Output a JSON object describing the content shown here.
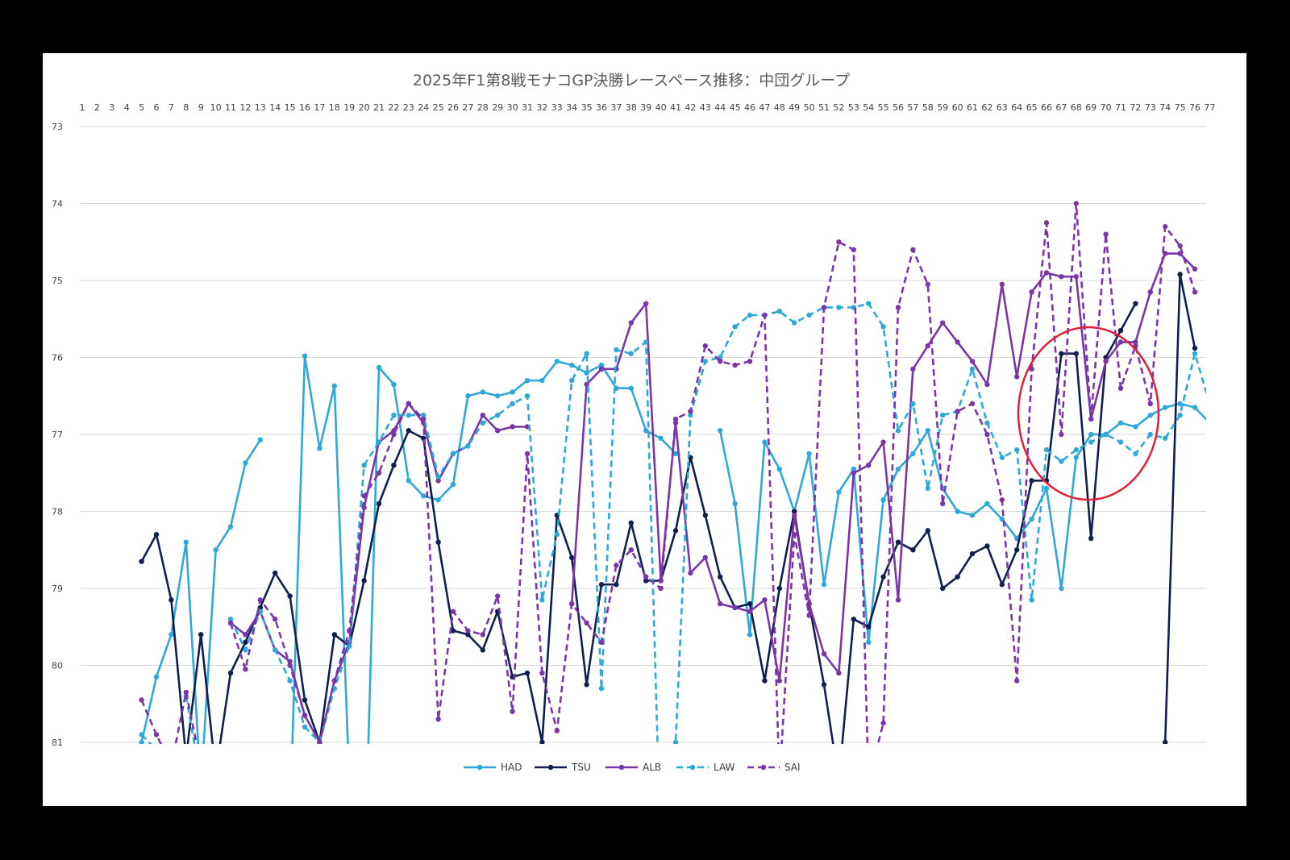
{
  "colors": {
    "background": "#000000",
    "panel": "#ffffff",
    "grid": "#d9d9d9",
    "highlight_circle": "#e0203a"
  },
  "chart_data": {
    "type": "line",
    "title": "2025年F1第8戦モナコGP決勝レースペース推移：中団グループ",
    "x_axis": {
      "position": "top",
      "min": 1,
      "max": 77
    },
    "y_axis": {
      "min": 73,
      "max": 81,
      "reversed": true,
      "ticks": [
        73,
        74,
        75,
        76,
        77,
        78,
        79,
        80,
        81
      ]
    },
    "grid": "horizontal",
    "legend_position": "bottom",
    "x": [
      1,
      2,
      3,
      4,
      5,
      6,
      7,
      8,
      9,
      10,
      11,
      12,
      13,
      14,
      15,
      16,
      17,
      18,
      19,
      20,
      21,
      22,
      23,
      24,
      25,
      26,
      27,
      28,
      29,
      30,
      31,
      32,
      33,
      34,
      35,
      36,
      37,
      38,
      39,
      40,
      41,
      42,
      43,
      44,
      45,
      46,
      47,
      48,
      49,
      50,
      51,
      52,
      53,
      54,
      55,
      56,
      57,
      58,
      59,
      60,
      61,
      62,
      63,
      64,
      65,
      66,
      67,
      68,
      69,
      70,
      71,
      72,
      73,
      74,
      75,
      76,
      77
    ],
    "series": [
      {
        "name": "HAD",
        "color": "#2ea8d8",
        "dash": false,
        "values": [
          null,
          null,
          null,
          null,
          81.0,
          80.15,
          79.6,
          78.4,
          81.6,
          78.5,
          78.2,
          77.37,
          77.07,
          null,
          82.0,
          75.98,
          77.18,
          76.37,
          81.5,
          83.0,
          76.13,
          76.35,
          77.6,
          77.8,
          77.85,
          77.65,
          76.5,
          76.45,
          76.5,
          76.45,
          76.3,
          76.3,
          76.05,
          76.1,
          76.2,
          76.1,
          76.4,
          76.4,
          76.95,
          77.05,
          77.25,
          null,
          null,
          76.95,
          77.9,
          79.6,
          77.1,
          77.45,
          78.0,
          77.25,
          78.95,
          77.75,
          77.45,
          79.7,
          77.85,
          77.45,
          77.25,
          76.95,
          77.7,
          78.0,
          78.05,
          77.9,
          78.1,
          78.35,
          78.1,
          77.7,
          79.0,
          77.3,
          77.0,
          77.0,
          76.85,
          76.9,
          76.75,
          76.65,
          76.6,
          76.65,
          76.85
        ]
      },
      {
        "name": "TSU",
        "color": "#0f1f4f",
        "dash": false,
        "values": [
          null,
          null,
          null,
          null,
          78.65,
          78.3,
          79.15,
          81.2,
          79.6,
          81.4,
          80.1,
          79.7,
          79.25,
          78.8,
          79.1,
          80.45,
          81.0,
          79.6,
          79.75,
          78.9,
          77.9,
          77.4,
          76.95,
          77.05,
          78.4,
          79.55,
          79.6,
          79.8,
          79.3,
          80.15,
          80.1,
          81.0,
          78.05,
          78.6,
          80.25,
          78.95,
          78.95,
          78.15,
          78.9,
          78.9,
          78.25,
          77.3,
          78.05,
          78.85,
          79.25,
          79.2,
          80.2,
          79.0,
          78.0,
          79.2,
          80.25,
          81.5,
          79.4,
          79.5,
          78.85,
          78.4,
          78.5,
          78.25,
          79.0,
          78.85,
          78.55,
          78.45,
          78.95,
          78.5,
          77.6,
          77.6,
          75.95,
          75.95,
          78.35,
          76.0,
          75.65,
          75.3,
          null,
          81.0,
          74.92,
          75.88,
          null
        ]
      },
      {
        "name": "ALB",
        "color": "#7a35a8",
        "dash": false,
        "values": [
          null,
          null,
          null,
          null,
          null,
          null,
          null,
          null,
          null,
          null,
          79.45,
          79.6,
          79.3,
          79.8,
          79.95,
          80.65,
          81.0,
          80.2,
          79.7,
          77.95,
          77.1,
          76.95,
          76.6,
          76.85,
          77.6,
          77.25,
          77.15,
          76.75,
          76.95,
          76.9,
          76.9,
          null,
          null,
          79.2,
          76.35,
          76.15,
          76.15,
          75.55,
          75.3,
          78.9,
          76.85,
          78.8,
          78.6,
          79.2,
          79.25,
          79.3,
          79.15,
          80.2,
          78.05,
          79.2,
          79.85,
          80.1,
          77.5,
          77.4,
          77.1,
          79.15,
          76.15,
          75.85,
          75.55,
          75.8,
          76.05,
          76.35,
          75.05,
          76.25,
          75.15,
          74.9,
          74.95,
          74.95,
          76.8,
          76.05,
          75.8,
          75.8,
          75.15,
          74.65,
          74.65,
          74.85,
          null
        ]
      },
      {
        "name": "LAW",
        "color": "#2ea8d8",
        "dash": true,
        "values": [
          null,
          null,
          null,
          null,
          80.9,
          81.1,
          null,
          80.4,
          81.5,
          null,
          79.4,
          79.8,
          79.3,
          79.8,
          80.2,
          80.8,
          81.0,
          80.3,
          79.75,
          77.4,
          77.1,
          76.75,
          76.75,
          76.75,
          77.55,
          77.25,
          77.15,
          76.85,
          76.75,
          76.6,
          76.5,
          79.15,
          78.3,
          76.3,
          75.95,
          80.3,
          75.9,
          75.95,
          75.8,
          82.5,
          81.0,
          76.75,
          76.05,
          76.0,
          75.6,
          75.45,
          75.45,
          75.4,
          75.55,
          75.45,
          75.35,
          75.35,
          75.35,
          75.3,
          75.6,
          76.95,
          76.6,
          77.7,
          76.75,
          76.7,
          76.15,
          76.85,
          77.3,
          77.2,
          79.15,
          77.2,
          77.35,
          77.2,
          77.1,
          77.0,
          77.1,
          77.25,
          77.0,
          77.05,
          76.75,
          75.95,
          76.6
        ]
      },
      {
        "name": "SAI",
        "color": "#7a35a8",
        "dash": true,
        "values": [
          null,
          null,
          null,
          null,
          80.45,
          80.9,
          81.3,
          80.35,
          81.3,
          null,
          79.45,
          80.05,
          79.15,
          79.4,
          80.0,
          80.65,
          81.0,
          80.2,
          79.55,
          77.8,
          77.5,
          77.0,
          76.6,
          76.8,
          80.7,
          79.3,
          79.55,
          79.6,
          79.1,
          80.6,
          77.25,
          80.1,
          80.85,
          79.2,
          79.45,
          79.7,
          78.7,
          78.5,
          78.85,
          79.0,
          76.8,
          76.7,
          75.85,
          76.05,
          76.1,
          76.05,
          75.45,
          81.5,
          78.3,
          79.35,
          75.35,
          74.5,
          74.6,
          81.5,
          80.75,
          75.35,
          74.6,
          75.05,
          77.9,
          76.7,
          76.6,
          77.0,
          77.85,
          80.2,
          76.15,
          74.25,
          77.0,
          74.0,
          76.8,
          74.4,
          76.4,
          75.85,
          76.6,
          74.3,
          74.55,
          75.15,
          null
        ]
      }
    ]
  }
}
